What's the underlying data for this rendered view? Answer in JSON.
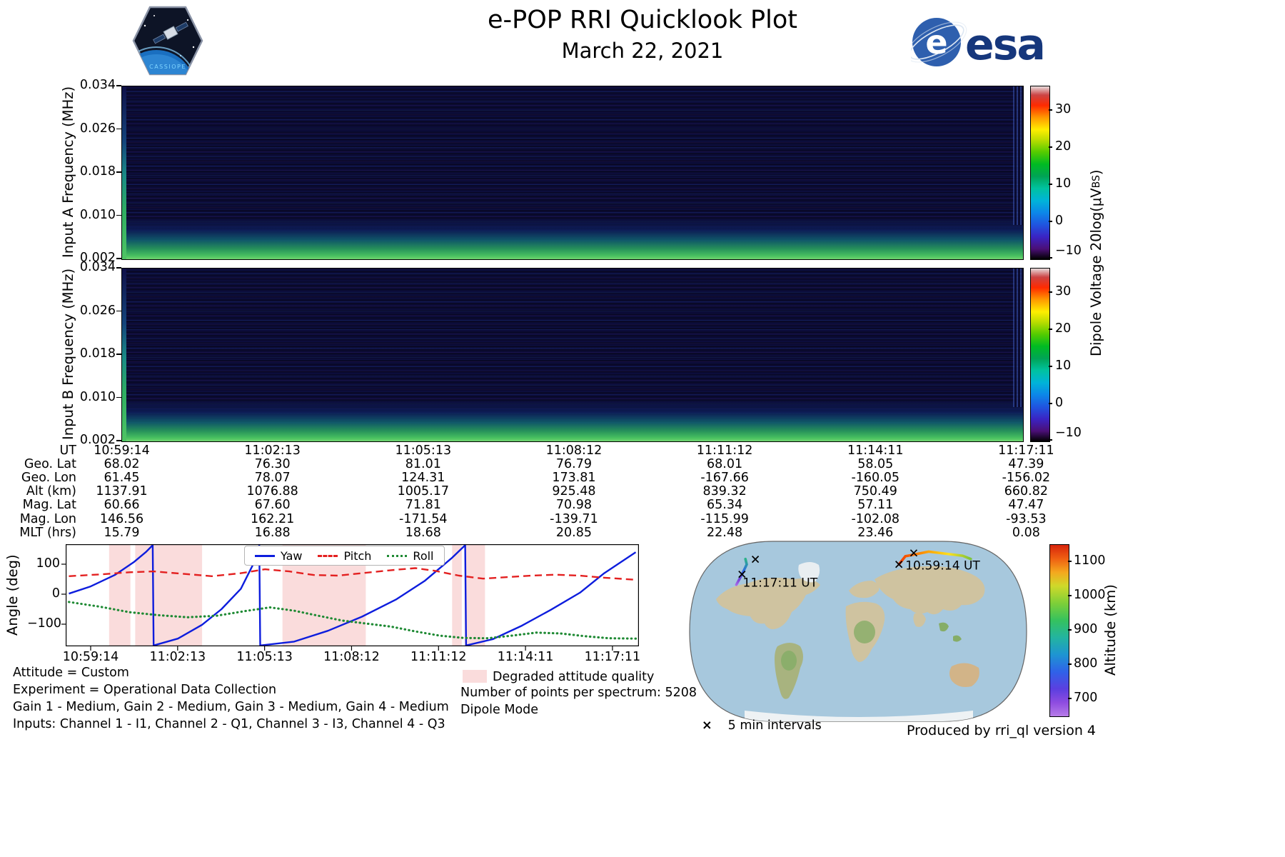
{
  "header": {
    "title": "e-POP RRI Quicklook Plot",
    "date": "March 22, 2021",
    "patch_text": "CASSIOPE",
    "esa_text": "esa"
  },
  "spectrograms": {
    "colorbar_label_pre": "Dipole Voltage 20log(μV",
    "colorbar_label_sub": "BS",
    "colorbar_label_post": ")",
    "panels": [
      {
        "ylabel": "Input A Frequency (MHz)",
        "yticks": [
          "0.034",
          "0.026",
          "0.018",
          "0.010",
          "0.002"
        ]
      },
      {
        "ylabel": "Input B Frequency (MHz)",
        "yticks": [
          "0.034",
          "0.026",
          "0.018",
          "0.010",
          "0.002"
        ]
      }
    ]
  },
  "ephemeris": {
    "row_labels": [
      "UT",
      "Geo. Lat",
      "Geo. Lon",
      "Alt (km)",
      "Mag. Lat",
      "Mag. Lon",
      "MLT (hrs)"
    ],
    "columns": [
      [
        "10:59:14",
        "68.02",
        "61.45",
        "1137.91",
        "60.66",
        "146.56",
        "15.79"
      ],
      [
        "11:02:13",
        "76.30",
        "78.07",
        "1076.88",
        "67.60",
        "162.21",
        "16.88"
      ],
      [
        "11:05:13",
        "81.01",
        "124.31",
        "1005.17",
        "71.81",
        "-171.54",
        "18.68"
      ],
      [
        "11:08:12",
        "76.79",
        "173.81",
        "925.48",
        "70.98",
        "-139.71",
        "20.85"
      ],
      [
        "11:11:12",
        "68.01",
        "-167.66",
        "839.32",
        "65.34",
        "-115.99",
        "22.48"
      ],
      [
        "11:14:11",
        "58.05",
        "-160.05",
        "750.49",
        "57.11",
        "-102.08",
        "23.46"
      ],
      [
        "11:17:11",
        "47.39",
        "-156.02",
        "660.82",
        "47.47",
        "-93.53",
        "0.08"
      ]
    ]
  },
  "attitude": {
    "ylabel": "Angle (deg)"
  },
  "info": {
    "lines": [
      "Attitude = Custom",
      "Experiment = Operational Data Collection",
      "Gain 1 - Medium, Gain 2 - Medium, Gain 3 - Medium, Gain 4 - Medium",
      "Inputs: Channel 1 - I1, Channel 2 - Q1, Channel 3 - I3, Channel 4 - Q3"
    ],
    "degraded_label": "Degraded attitude quality",
    "points_per_spectrum": "Number of points per spectrum: 5208",
    "mode": "Dipole Mode"
  },
  "map": {
    "start_label": "10:59:14 UT",
    "end_label": "11:17:11 UT",
    "intervals_label": "5 min intervals",
    "colorbar_label": "Altitude (km)"
  },
  "produced_by": "Produced by rri_ql version 4",
  "colors": {
    "degraded": "#fadcdc",
    "esa_blue": "#16377c",
    "spectrogram_background": "#0a0a30",
    "ocean": "#a7c8dd",
    "land": "#cfc3a0"
  },
  "chart_data": [
    {
      "type": "heatmap",
      "title": "Input A spectrogram",
      "ylabel": "Input A Frequency (MHz)",
      "x_range_ut": [
        "10:59:14",
        "11:17:11"
      ],
      "y_range_mhz": [
        0.002,
        0.034
      ],
      "yticks": [
        0.034,
        0.026,
        0.018,
        0.01,
        0.002
      ],
      "colorbar": {
        "label": "Dipole Voltage 20log(μVBS)",
        "ticks": [
          30,
          20,
          10,
          0,
          -10
        ],
        "range": [
          -10,
          36.5
        ]
      },
      "description": "Mostly dark navy (~-5 dB) with fine horizontal banding at all frequencies; broadband green enhancement (~10-15 dB) below ~0.005 MHz along the whole pass; bright green/cyan column at the very start of the pass; vertical striping at the right edge."
    },
    {
      "type": "heatmap",
      "title": "Input B spectrogram",
      "ylabel": "Input B Frequency (MHz)",
      "x_range_ut": [
        "10:59:14",
        "11:17:11"
      ],
      "y_range_mhz": [
        0.002,
        0.034
      ],
      "yticks": [
        0.034,
        0.026,
        0.018,
        0.01,
        0.002
      ],
      "colorbar": {
        "label": "Dipole Voltage 20log(μVBS)",
        "ticks": [
          30,
          20,
          10,
          0,
          -10
        ],
        "range": [
          -10,
          36.5
        ]
      },
      "description": "Same appearance as Input A: dark navy banded background with green low-frequency enhancement band at the bottom."
    },
    {
      "type": "line",
      "title": "Spacecraft attitude angles",
      "ylabel": "Angle (deg)",
      "ylim": [
        -180,
        175
      ],
      "yticks_values": [
        100,
        0,
        -100
      ],
      "xticks": [
        "10:59:14",
        "11:02:13",
        "11:05:13",
        "11:08:12",
        "11:11:12",
        "11:14:11",
        "11:17:11"
      ],
      "x_unit": "seconds from 10:59:14",
      "series": [
        {
          "name": "Yaw",
          "color": "#0d1ddd",
          "style": "solid",
          "points": [
            [
              -45,
              2
            ],
            [
              0,
              26
            ],
            [
              50,
              64
            ],
            [
              90,
              108
            ],
            [
              115,
              142
            ],
            [
              128,
              172
            ],
            [
              130,
              -176
            ],
            [
              180,
              -148
            ],
            [
              230,
              -102
            ],
            [
              270,
              -50
            ],
            [
              310,
              18
            ],
            [
              335,
              98
            ],
            [
              348,
              168
            ],
            [
              350,
              -175
            ],
            [
              420,
              -158
            ],
            [
              490,
              -122
            ],
            [
              560,
              -75
            ],
            [
              630,
              -18
            ],
            [
              690,
              45
            ],
            [
              745,
              120
            ],
            [
              773,
              170
            ],
            [
              775,
              -176
            ],
            [
              830,
              -150
            ],
            [
              890,
              -105
            ],
            [
              950,
              -52
            ],
            [
              1010,
              5
            ],
            [
              1060,
              70
            ],
            [
              1125,
              140
            ]
          ]
        },
        {
          "name": "Pitch",
          "color": "#e32020",
          "style": "dashed",
          "points": [
            [
              -45,
              60
            ],
            [
              20,
              66
            ],
            [
              80,
              73
            ],
            [
              130,
              76
            ],
            [
              190,
              68
            ],
            [
              250,
              60
            ],
            [
              310,
              70
            ],
            [
              360,
              83
            ],
            [
              410,
              76
            ],
            [
              460,
              64
            ],
            [
              510,
              62
            ],
            [
              560,
              70
            ],
            [
              620,
              80
            ],
            [
              670,
              87
            ],
            [
              710,
              78
            ],
            [
              760,
              62
            ],
            [
              810,
              52
            ],
            [
              860,
              57
            ],
            [
              910,
              62
            ],
            [
              960,
              65
            ],
            [
              1010,
              62
            ],
            [
              1060,
              55
            ],
            [
              1125,
              48
            ]
          ]
        },
        {
          "name": "Roll",
          "color": "#1f8a34",
          "style": "dotted",
          "points": [
            [
              -45,
              -26
            ],
            [
              20,
              -42
            ],
            [
              80,
              -60
            ],
            [
              140,
              -70
            ],
            [
              200,
              -77
            ],
            [
              260,
              -72
            ],
            [
              320,
              -56
            ],
            [
              370,
              -44
            ],
            [
              420,
              -55
            ],
            [
              470,
              -72
            ],
            [
              520,
              -88
            ],
            [
              570,
              -98
            ],
            [
              620,
              -108
            ],
            [
              670,
              -124
            ],
            [
              720,
              -138
            ],
            [
              770,
              -146
            ],
            [
              820,
              -147
            ],
            [
              870,
              -138
            ],
            [
              920,
              -128
            ],
            [
              970,
              -131
            ],
            [
              1020,
              -140
            ],
            [
              1070,
              -147
            ],
            [
              1125,
              -148
            ]
          ]
        }
      ],
      "degraded_regions_seconds": [
        [
          38,
          82
        ],
        [
          92,
          230
        ],
        [
          396,
          568
        ],
        [
          746,
          766
        ],
        [
          772,
          814
        ]
      ],
      "legend_position": "top center"
    },
    {
      "type": "map",
      "title": "Ground track colored by altitude",
      "projection": "Robinson",
      "track": [
        {
          "ut": "10:59:14",
          "lat": 68.02,
          "lon": 61.45,
          "alt_km": 1137.91
        },
        {
          "ut": "11:02:13",
          "lat": 76.3,
          "lon": 78.07,
          "alt_km": 1076.88
        },
        {
          "ut": "11:05:13",
          "lat": 81.01,
          "lon": 124.31,
          "alt_km": 1005.17
        },
        {
          "ut": "11:08:12",
          "lat": 76.79,
          "lon": 173.81,
          "alt_km": 925.48
        },
        {
          "ut": "11:11:12",
          "lat": 68.01,
          "lon": -167.66,
          "alt_km": 839.32
        },
        {
          "ut": "11:14:11",
          "lat": 58.05,
          "lon": -160.05,
          "alt_km": 750.49
        },
        {
          "ut": "11:17:11",
          "lat": 47.39,
          "lon": -156.02,
          "alt_km": 660.82
        }
      ],
      "interval_markers": [
        {
          "ut": "10:59:14",
          "lat": 68.02,
          "lon": 61.45
        },
        {
          "ut": "11:04:14",
          "lat": 79.6,
          "lon": 96.0
        },
        {
          "ut": "11:09:14",
          "lat": 73.2,
          "lon": -163.5
        },
        {
          "ut": "11:14:14",
          "lat": 58.0,
          "lon": -160.1
        }
      ],
      "markers_note": "x every 5 min",
      "colorbar": {
        "label": "Altitude (km)",
        "ticks": [
          1100,
          1000,
          900,
          800,
          700
        ],
        "range": [
          650,
          1150
        ]
      }
    }
  ]
}
